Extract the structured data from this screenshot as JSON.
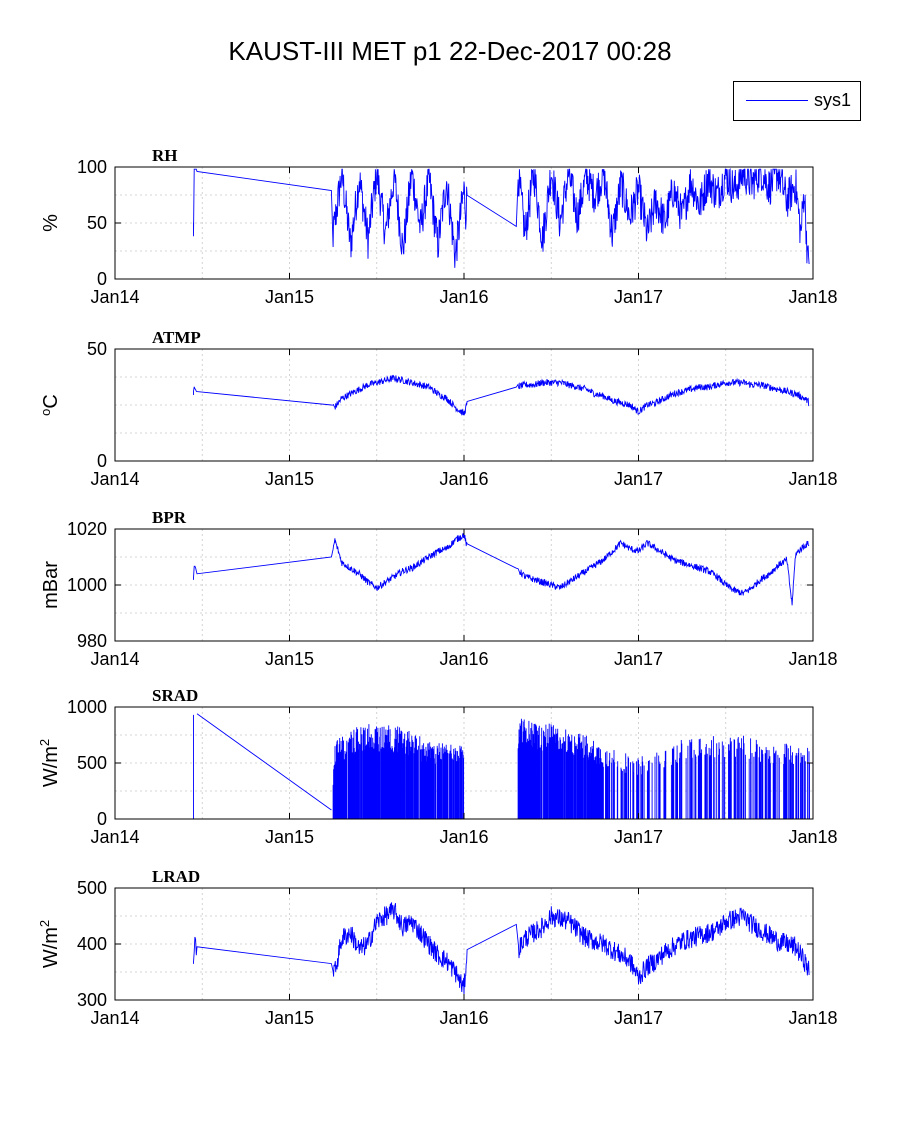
{
  "figure_title": "KAUST-III MET p1 22-Dec-2017 00:28",
  "legend": {
    "label": "sys1",
    "color": "#0000ff"
  },
  "x_tick_labels": [
    "Jan14",
    "Jan15",
    "Jan16",
    "Jan17",
    "Jan18"
  ],
  "chart_data": [
    {
      "type": "line",
      "title": "RH",
      "ylabel": "%",
      "ylim": [
        0,
        100
      ],
      "yticks": [
        0,
        50,
        100
      ],
      "series": [
        {
          "name": "sys1",
          "points": [
            [
              2014.45,
              45
            ],
            [
              2014.45,
              95
            ],
            [
              2014.47,
              96
            ],
            [
              2015.24,
              79
            ],
            [
              2015.25,
              40
            ],
            [
              2015.3,
              95
            ],
            [
              2015.35,
              30
            ],
            [
              2015.4,
              90
            ],
            [
              2015.45,
              35
            ],
            [
              2015.5,
              96
            ],
            [
              2015.55,
              40
            ],
            [
              2015.6,
              92
            ],
            [
              2015.65,
              25
            ],
            [
              2015.7,
              95
            ],
            [
              2015.75,
              45
            ],
            [
              2015.8,
              90
            ],
            [
              2015.85,
              30
            ],
            [
              2015.9,
              88
            ],
            [
              2015.95,
              20
            ],
            [
              2016.0,
              80
            ],
            [
              2016.01,
              60
            ],
            [
              2016.02,
              80
            ],
            [
              2016.3,
              47
            ],
            [
              2016.31,
              95
            ],
            [
              2016.35,
              40
            ],
            [
              2016.4,
              96
            ],
            [
              2016.45,
              35
            ],
            [
              2016.5,
              97
            ],
            [
              2016.55,
              50
            ],
            [
              2016.6,
              95
            ],
            [
              2016.65,
              55
            ],
            [
              2016.7,
              92
            ],
            [
              2016.75,
              75
            ],
            [
              2016.8,
              95
            ],
            [
              2016.85,
              40
            ],
            [
              2016.9,
              85
            ],
            [
              2016.95,
              55
            ],
            [
              2017.0,
              80
            ],
            [
              2017.05,
              40
            ],
            [
              2017.1,
              70
            ],
            [
              2017.15,
              50
            ],
            [
              2017.2,
              80
            ],
            [
              2017.25,
              55
            ],
            [
              2017.3,
              88
            ],
            [
              2017.35,
              65
            ],
            [
              2017.4,
              90
            ],
            [
              2017.45,
              75
            ],
            [
              2017.5,
              93
            ],
            [
              2017.55,
              80
            ],
            [
              2017.6,
              95
            ],
            [
              2017.65,
              85
            ],
            [
              2017.7,
              97
            ],
            [
              2017.75,
              82
            ],
            [
              2017.8,
              96
            ],
            [
              2017.85,
              70
            ],
            [
              2017.9,
              85
            ],
            [
              2017.93,
              40
            ],
            [
              2017.95,
              80
            ],
            [
              2017.97,
              15
            ],
            [
              2017.98,
              25
            ]
          ]
        }
      ]
    },
    {
      "type": "line",
      "title": "ATMP",
      "ylabel": "°C",
      "ylim": [
        0,
        50
      ],
      "yticks": [
        0,
        50
      ],
      "series": [
        {
          "name": "sys1",
          "points": [
            [
              2014.45,
              30
            ],
            [
              2014.45,
              33
            ],
            [
              2014.47,
              31
            ],
            [
              2015.24,
              25
            ],
            [
              2015.26,
              24
            ],
            [
              2015.3,
              28
            ],
            [
              2015.35,
              30
            ],
            [
              2015.4,
              32
            ],
            [
              2015.45,
              34
            ],
            [
              2015.5,
              35
            ],
            [
              2015.55,
              36
            ],
            [
              2015.6,
              37
            ],
            [
              2015.65,
              36
            ],
            [
              2015.7,
              35
            ],
            [
              2015.75,
              34
            ],
            [
              2015.8,
              33
            ],
            [
              2015.85,
              30
            ],
            [
              2015.9,
              28
            ],
            [
              2015.95,
              24
            ],
            [
              2016.0,
              21
            ],
            [
              2016.02,
              26
            ],
            [
              2016.3,
              33
            ],
            [
              2016.35,
              34
            ],
            [
              2016.4,
              34
            ],
            [
              2016.45,
              35
            ],
            [
              2016.5,
              35
            ],
            [
              2016.55,
              35
            ],
            [
              2016.6,
              34
            ],
            [
              2016.65,
              33
            ],
            [
              2016.7,
              32
            ],
            [
              2016.75,
              30
            ],
            [
              2016.8,
              29
            ],
            [
              2016.85,
              27
            ],
            [
              2016.9,
              26
            ],
            [
              2016.95,
              25
            ],
            [
              2017.0,
              22
            ],
            [
              2017.05,
              25
            ],
            [
              2017.1,
              26
            ],
            [
              2017.15,
              28
            ],
            [
              2017.2,
              30
            ],
            [
              2017.25,
              31
            ],
            [
              2017.3,
              32
            ],
            [
              2017.35,
              33
            ],
            [
              2017.4,
              33
            ],
            [
              2017.45,
              34
            ],
            [
              2017.5,
              35
            ],
            [
              2017.55,
              35
            ],
            [
              2017.6,
              35
            ],
            [
              2017.65,
              34
            ],
            [
              2017.7,
              34
            ],
            [
              2017.75,
              33
            ],
            [
              2017.8,
              32
            ],
            [
              2017.85,
              31
            ],
            [
              2017.9,
              30
            ],
            [
              2017.95,
              28
            ],
            [
              2017.98,
              26
            ]
          ]
        }
      ]
    },
    {
      "type": "line",
      "title": "BPR",
      "ylabel": "mBar",
      "ylim": [
        980,
        1020
      ],
      "yticks": [
        980,
        1000,
        1020
      ],
      "series": [
        {
          "name": "sys1",
          "points": [
            [
              2014.45,
              1002
            ],
            [
              2014.45,
              1007
            ],
            [
              2014.47,
              1004
            ],
            [
              2015.24,
              1010
            ],
            [
              2015.26,
              1016
            ],
            [
              2015.3,
              1008
            ],
            [
              2015.35,
              1006
            ],
            [
              2015.4,
              1004
            ],
            [
              2015.45,
              1001
            ],
            [
              2015.5,
              999
            ],
            [
              2015.55,
              1001
            ],
            [
              2015.6,
              1003
            ],
            [
              2015.65,
              1005
            ],
            [
              2015.7,
              1006
            ],
            [
              2015.75,
              1008
            ],
            [
              2015.8,
              1010
            ],
            [
              2015.85,
              1012
            ],
            [
              2015.9,
              1013
            ],
            [
              2015.95,
              1016
            ],
            [
              2016.0,
              1018
            ],
            [
              2016.02,
              1013
            ],
            [
              2016.3,
              1006
            ],
            [
              2016.35,
              1003
            ],
            [
              2016.4,
              1002
            ],
            [
              2016.45,
              1001
            ],
            [
              2016.5,
              1000
            ],
            [
              2016.55,
              999
            ],
            [
              2016.6,
              1001
            ],
            [
              2016.65,
              1003
            ],
            [
              2016.7,
              1005
            ],
            [
              2016.75,
              1007
            ],
            [
              2016.8,
              1009
            ],
            [
              2016.85,
              1012
            ],
            [
              2016.9,
              1015
            ],
            [
              2016.95,
              1013
            ],
            [
              2017.0,
              1012
            ],
            [
              2017.05,
              1015
            ],
            [
              2017.1,
              1013
            ],
            [
              2017.15,
              1011
            ],
            [
              2017.2,
              1009
            ],
            [
              2017.25,
              1008
            ],
            [
              2017.3,
              1007
            ],
            [
              2017.35,
              1006
            ],
            [
              2017.4,
              1005
            ],
            [
              2017.45,
              1003
            ],
            [
              2017.5,
              1000
            ],
            [
              2017.55,
              998
            ],
            [
              2017.6,
              997
            ],
            [
              2017.65,
              999
            ],
            [
              2017.7,
              1002
            ],
            [
              2017.75,
              1004
            ],
            [
              2017.8,
              1007
            ],
            [
              2017.85,
              1009
            ],
            [
              2017.88,
              993
            ],
            [
              2017.9,
              1011
            ],
            [
              2017.95,
              1014
            ],
            [
              2017.98,
              1015
            ]
          ]
        }
      ]
    },
    {
      "type": "line",
      "title": "SRAD",
      "ylabel": "W/m²",
      "ylim": [
        0,
        1000
      ],
      "yticks": [
        0,
        500,
        1000
      ],
      "series": [
        {
          "name": "sys1",
          "note": "diurnal cycle 0 to daily peak",
          "points": [
            [
              2014.45,
              0
            ],
            [
              2014.45,
              930
            ],
            [
              2014.47,
              940
            ],
            [
              2015.24,
              80
            ],
            [
              2015.26,
              700
            ],
            [
              2015.4,
              850
            ],
            [
              2015.6,
              850
            ],
            [
              2015.8,
              700
            ],
            [
              2016.0,
              650
            ],
            [
              2016.02,
              0
            ],
            [
              2016.3,
              0
            ],
            [
              2016.31,
              900
            ],
            [
              2016.5,
              850
            ],
            [
              2016.7,
              750
            ],
            [
              2016.8,
              650
            ],
            [
              2017.0,
              550
            ],
            [
              2017.2,
              700
            ],
            [
              2017.4,
              750
            ],
            [
              2017.6,
              750
            ],
            [
              2017.8,
              700
            ],
            [
              2017.98,
              650
            ]
          ]
        }
      ]
    },
    {
      "type": "line",
      "title": "LRAD",
      "ylabel": "W/m²",
      "ylim": [
        300,
        500
      ],
      "yticks": [
        300,
        400,
        500
      ],
      "series": [
        {
          "name": "sys1",
          "points": [
            [
              2014.45,
              365
            ],
            [
              2014.45,
              395
            ],
            [
              2014.47,
              395
            ],
            [
              2015.24,
              365
            ],
            [
              2015.26,
              350
            ],
            [
              2015.3,
              410
            ],
            [
              2015.35,
              420
            ],
            [
              2015.4,
              390
            ],
            [
              2015.45,
              400
            ],
            [
              2015.5,
              440
            ],
            [
              2015.55,
              450
            ],
            [
              2015.6,
              460
            ],
            [
              2015.65,
              430
            ],
            [
              2015.7,
              440
            ],
            [
              2015.75,
              420
            ],
            [
              2015.8,
              400
            ],
            [
              2015.85,
              380
            ],
            [
              2015.9,
              370
            ],
            [
              2015.95,
              350
            ],
            [
              2016.0,
              320
            ],
            [
              2016.02,
              395
            ],
            [
              2016.3,
              435
            ],
            [
              2016.31,
              390
            ],
            [
              2016.35,
              410
            ],
            [
              2016.4,
              420
            ],
            [
              2016.45,
              430
            ],
            [
              2016.5,
              450
            ],
            [
              2016.55,
              445
            ],
            [
              2016.6,
              440
            ],
            [
              2016.65,
              425
            ],
            [
              2016.7,
              410
            ],
            [
              2016.75,
              405
            ],
            [
              2016.8,
              400
            ],
            [
              2016.85,
              390
            ],
            [
              2016.9,
              380
            ],
            [
              2016.95,
              370
            ],
            [
              2017.0,
              340
            ],
            [
              2017.05,
              360
            ],
            [
              2017.1,
              370
            ],
            [
              2017.15,
              385
            ],
            [
              2017.2,
              395
            ],
            [
              2017.25,
              405
            ],
            [
              2017.3,
              410
            ],
            [
              2017.35,
              415
            ],
            [
              2017.4,
              420
            ],
            [
              2017.45,
              425
            ],
            [
              2017.5,
              440
            ],
            [
              2017.55,
              445
            ],
            [
              2017.6,
              450
            ],
            [
              2017.65,
              435
            ],
            [
              2017.7,
              425
            ],
            [
              2017.75,
              415
            ],
            [
              2017.8,
              405
            ],
            [
              2017.85,
              400
            ],
            [
              2017.9,
              395
            ],
            [
              2017.95,
              370
            ],
            [
              2017.98,
              350
            ]
          ]
        }
      ]
    }
  ]
}
